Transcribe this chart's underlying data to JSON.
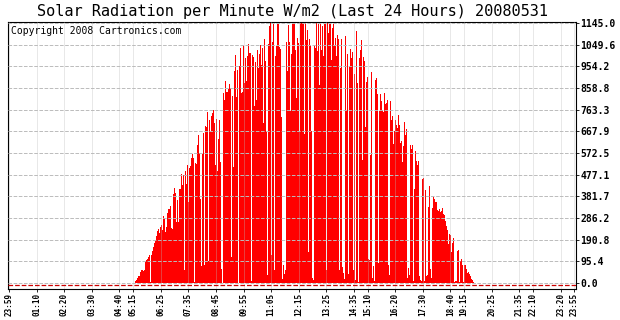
{
  "title": "Solar Radiation per Minute W/m2 (Last 24 Hours) 20080531",
  "copyright": "Copyright 2008 Cartronics.com",
  "ymax": 1145.0,
  "ymin": 0.0,
  "yticks": [
    0.0,
    95.4,
    190.8,
    286.2,
    381.7,
    477.1,
    572.5,
    667.9,
    763.3,
    858.8,
    954.2,
    1049.6,
    1145.0
  ],
  "bar_color": "#FF0000",
  "dashed_line_color": "#CC0000",
  "background_color": "#ffffff",
  "grid_color": "#bbbbbb",
  "title_fontsize": 11,
  "copyright_fontsize": 7,
  "xtick_labels": [
    "23:59",
    "01:10",
    "02:20",
    "03:30",
    "04:40",
    "05:15",
    "06:25",
    "07:35",
    "08:45",
    "09:55",
    "11:05",
    "12:15",
    "13:25",
    "14:35",
    "15:10",
    "16:20",
    "17:30",
    "18:40",
    "19:15",
    "20:25",
    "21:35",
    "22:10",
    "23:20",
    "23:55"
  ],
  "sunrise_min": 318,
  "sunset_min": 1181,
  "peak_value": 1145.0,
  "solar_noon_min": 757
}
